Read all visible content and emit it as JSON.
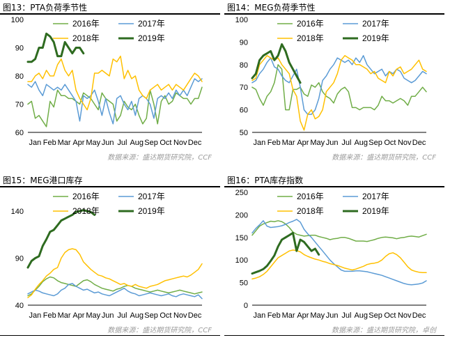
{
  "panels": [
    {
      "title": "图13：PTA负荷季节性",
      "source": "数据来源：盛达期货研究院，CCF",
      "chart_data": {
        "type": "line",
        "xlabels": [
          "Jan",
          "Feb",
          "Mar",
          "Apr",
          "May",
          "Jun",
          "Jul",
          "Aug",
          "Sep",
          "Oct",
          "Nov",
          "Dec"
        ],
        "ylim": [
          60,
          100
        ],
        "yticks": [
          60,
          70,
          80,
          90,
          100
        ],
        "series": [
          {
            "name": "2016年",
            "color": "#70ad47",
            "width": 1.5,
            "values": [
              70,
              71,
              65,
              66,
              64,
              62,
              71,
              69,
              75,
              73,
              73,
              72,
              72,
              71,
              70,
              74,
              73,
              72,
              70,
              68,
              74,
              72,
              71,
              70,
              64,
              66,
              71,
              69,
              68,
              70,
              66,
              63,
              65,
              75,
              70,
              63,
              71,
              73,
              70,
              71,
              74,
              73,
              72,
              72,
              70,
              72,
              72,
              76
            ]
          },
          {
            "name": "2017年",
            "color": "#5b9bd5",
            "width": 1.5,
            "values": [
              77,
              76,
              78,
              75,
              73,
              77,
              76,
              75,
              76,
              75,
              77,
              75,
              73,
              71,
              64,
              73,
              72,
              73,
              75,
              71,
              66,
              72,
              67,
              63,
              72,
              73,
              70,
              68,
              71,
              66,
              72,
              73,
              72,
              70,
              65,
              72,
              73,
              72,
              74,
              72,
              75,
              73,
              75,
              73,
              76,
              79,
              78,
              79
            ]
          },
          {
            "name": "2018年",
            "color": "#ffc000",
            "width": 1.5,
            "values": [
              78,
              78,
              80,
              81,
              79,
              82,
              80,
              80,
              84,
              86,
              82,
              80,
              82,
              75,
              72,
              70,
              68,
              72,
              81,
              81,
              82,
              81,
              80,
              86,
              85,
              87,
              79,
              82,
              79,
              80,
              75,
              73,
              72,
              75,
              76,
              77,
              75,
              76,
              77,
              75,
              77,
              76,
              75,
              77,
              79,
              81,
              80,
              78
            ]
          },
          {
            "name": "2019年",
            "color": "#2e6b20",
            "width": 3,
            "values": [
              85,
              85,
              86,
              90,
              90,
              95,
              94,
              92,
              87,
              87,
              92,
              90,
              88,
              90,
              90,
              88
            ]
          }
        ]
      }
    },
    {
      "title": "图14：MEG负荷季节性",
      "source": "数据来源：盛达期货研究院，CCF",
      "chart_data": {
        "type": "line",
        "xlabels": [
          "Jan",
          "Feb",
          "Mar",
          "Apr",
          "May",
          "Jun",
          "Jul",
          "Aug",
          "Sep",
          "Oct",
          "Nov",
          "Dec"
        ],
        "ylim": [
          50,
          100
        ],
        "yticks": [
          50,
          60,
          70,
          80,
          90,
          100
        ],
        "series": [
          {
            "name": "2016年",
            "color": "#70ad47",
            "width": 1.5,
            "values": [
              70,
              69,
              65,
              62,
              66,
              68,
              72,
              80,
              78,
              60,
              60,
              69,
              69,
              70,
              67,
              66,
              71,
              70,
              72,
              68,
              66,
              65,
              63,
              67,
              69,
              70,
              68,
              61,
              61,
              60,
              61,
              61,
              61,
              60,
              62,
              66,
              64,
              64,
              63,
              64,
              65,
              64,
              62,
              66,
              66,
              68,
              70,
              68
            ]
          },
          {
            "name": "2017年",
            "color": "#5b9bd5",
            "width": 1.5,
            "values": [
              72,
              73,
              76,
              78,
              81,
              83,
              79,
              78,
              75,
              73,
              72,
              75,
              78,
              70,
              60,
              58,
              58,
              60,
              65,
              73,
              75,
              78,
              80,
              83,
              82,
              81,
              82,
              80,
              83,
              81,
              84,
              80,
              78,
              76,
              77,
              78,
              75,
              77,
              76,
              78,
              77,
              74,
              73,
              72,
              73,
              75,
              77,
              76
            ]
          },
          {
            "name": "2018年",
            "color": "#ffc000",
            "width": 1.5,
            "values": [
              73,
              74,
              80,
              82,
              84,
              83,
              82,
              83,
              80,
              78,
              76,
              69,
              66,
              55,
              51,
              58,
              60,
              56,
              57,
              60,
              68,
              70,
              72,
              76,
              82,
              84,
              83,
              82,
              80,
              80,
              79,
              78,
              76,
              77,
              74,
              73,
              72,
              77,
              75,
              78,
              79,
              76,
              77,
              78,
              80,
              82,
              78,
              77
            ]
          },
          {
            "name": "2019年",
            "color": "#2e6b20",
            "width": 3,
            "values": [
              74,
              76,
              82,
              84,
              85,
              86,
              82,
              84,
              89,
              86,
              81,
              78,
              75,
              72
            ]
          }
        ]
      }
    },
    {
      "title": "图15：MEG港口库存",
      "source": "数据来源：盛达期货研究院，CCF",
      "chart_data": {
        "type": "line",
        "xlabels": [
          "Jan",
          "Feb",
          "Mar",
          "Apr",
          "May",
          "Jun",
          "Jul",
          "Aug",
          "Sep",
          "Oct",
          "Nov",
          "Dec"
        ],
        "ylim": [
          40,
          160
        ],
        "yticks": [
          40,
          90,
          140
        ],
        "series": [
          {
            "name": "2016年",
            "color": "#70ad47",
            "width": 1.5,
            "values": [
              50,
              52,
              56,
              60,
              65,
              68,
              70,
              69,
              66,
              64,
              63,
              62,
              61,
              60,
              63,
              66,
              67,
              65,
              62,
              60,
              58,
              57,
              56,
              55,
              57,
              58,
              60,
              61,
              60,
              58,
              57,
              56,
              55,
              54,
              55,
              56,
              55,
              54,
              53,
              54,
              55,
              56,
              55,
              54,
              53,
              52,
              53,
              54
            ]
          },
          {
            "name": "2017年",
            "color": "#5b9bd5",
            "width": 1.5,
            "values": [
              52,
              54,
              56,
              55,
              53,
              52,
              51,
              50,
              52,
              56,
              58,
              62,
              63,
              60,
              58,
              56,
              57,
              55,
              53,
              54,
              52,
              51,
              50,
              52,
              54,
              56,
              58,
              55,
              53,
              52,
              50,
              51,
              52,
              53,
              52,
              51,
              50,
              51,
              52,
              50,
              49,
              51,
              52,
              51,
              50,
              49,
              51,
              47
            ]
          },
          {
            "name": "2018年",
            "color": "#ffc000",
            "width": 1.5,
            "values": [
              48,
              51,
              57,
              62,
              66,
              71,
              74,
              78,
              80,
              90,
              96,
              99,
              100,
              99,
              94,
              86,
              82,
              78,
              75,
              72,
              71,
              69,
              68,
              66,
              64,
              62,
              63,
              61,
              60,
              62,
              60,
              59,
              58,
              60,
              61,
              62,
              64,
              66,
              67,
              68,
              69,
              70,
              71,
              70,
              72,
              75,
              78,
              84
            ]
          },
          {
            "name": "2019年",
            "color": "#2e6b20",
            "width": 3,
            "values": [
              80,
              87,
              90,
              92,
              103,
              110,
              118,
              120,
              125,
              130,
              132,
              134,
              136,
              139,
              140,
              141,
              140,
              139,
              136
            ]
          }
        ]
      }
    },
    {
      "title": "图16：PTA库存指数",
      "source": "数据来源：盛达期货研究院，卓创",
      "chart_data": {
        "type": "line",
        "xlabels": [
          "Jan",
          "Feb",
          "Mar",
          "Apr",
          "May",
          "Jun",
          "Jul",
          "Aug",
          "Sep",
          "Oct",
          "Nov",
          "Dec"
        ],
        "ylim": [
          0,
          250
        ],
        "yticks": [
          0,
          50,
          100,
          150,
          200,
          250
        ],
        "series": [
          {
            "name": "2016年",
            "color": "#70ad47",
            "width": 1.5,
            "values": [
              155,
              165,
              175,
              180,
              183,
              186,
              185,
              187,
              185,
              180,
              172,
              162,
              157,
              155,
              153,
              154,
              155,
              155,
              152,
              150,
              148,
              145,
              147,
              148,
              150,
              150,
              148,
              145,
              142,
              142,
              142,
              141,
              143,
              145,
              148,
              150,
              151,
              150,
              149,
              147,
              149,
              150,
              152,
              153,
              152,
              151,
              154,
              157
            ]
          },
          {
            "name": "2017年",
            "color": "#5b9bd5",
            "width": 1.5,
            "values": [
              160,
              170,
              178,
              187,
              175,
              172,
              173,
              174,
              176,
              179,
              183,
              186,
              190,
              184,
              168,
              158,
              150,
              140,
              130,
              120,
              110,
              100,
              92,
              85,
              78,
              75,
              75,
              75,
              76,
              76,
              75,
              74,
              72,
              70,
              68,
              66,
              63,
              60,
              57,
              54,
              51,
              48,
              46,
              45,
              46,
              47,
              49,
              54
            ]
          },
          {
            "name": "2018年",
            "color": "#ffc000",
            "width": 1.5,
            "values": [
              58,
              60,
              63,
              68,
              75,
              85,
              95,
              105,
              110,
              115,
              120,
              122,
              121,
              118,
              112,
              108,
              105,
              102,
              100,
              97,
              95,
              92,
              90,
              88,
              85,
              82,
              80,
              78,
              80,
              83,
              86,
              90,
              92,
              93,
              95,
              100,
              108,
              114,
              116,
              112,
              105,
              95,
              85,
              78,
              75,
              73,
              72,
              72
            ]
          },
          {
            "name": "2019年",
            "color": "#2e6b20",
            "width": 3,
            "values": [
              70,
              73,
              76,
              80,
              87,
              98,
              110,
              130,
              145,
              150,
              155,
              160,
              120,
              145,
              140,
              130,
              120,
              125,
              112
            ]
          }
        ]
      }
    }
  ]
}
